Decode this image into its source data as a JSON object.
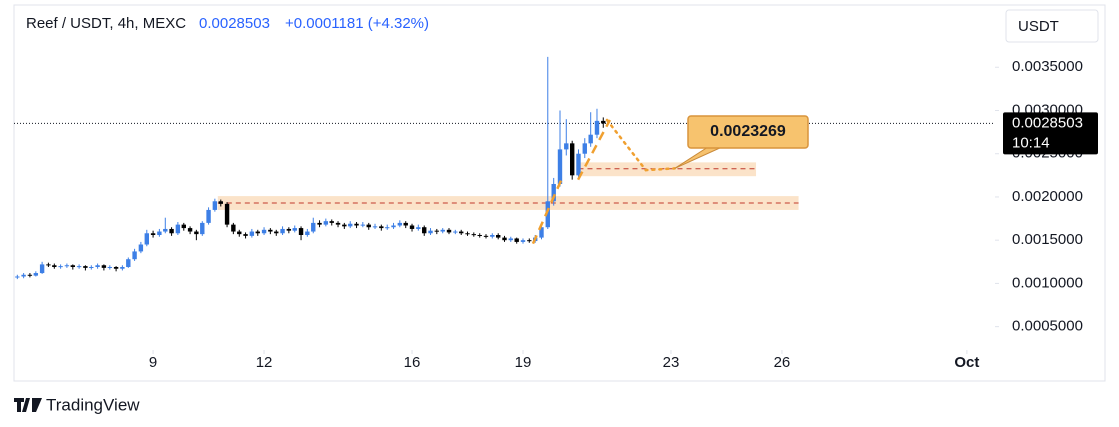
{
  "header": {
    "symbol": "Reef / USDT, 4h, MEXC",
    "change": "+0.0001181 (+4.32%)",
    "currency_button": "USDT",
    "countdown": "10:14",
    "brand": "TradingView"
  },
  "chart_data": {
    "type": "candlestick",
    "up_color": "#3d7fe6",
    "down_color": "#000000",
    "xlim": [
      5.24,
      31.76
    ],
    "xticks": [
      9,
      12,
      16,
      19,
      23,
      26,
      {
        "value": 31,
        "label": "Oct"
      }
    ],
    "ylim": [
      0.00023,
      0.00422
    ],
    "yticks": [
      {
        "value": 0.0005,
        "label": "0.0005000"
      },
      {
        "value": 0.001,
        "label": "0.0010000"
      },
      {
        "value": 0.0015,
        "label": "0.0015000"
      },
      {
        "value": 0.002,
        "label": "0.0020000"
      },
      {
        "value": 0.0025,
        "label": "0.0025000"
      },
      {
        "value": 0.003,
        "label": "0.0030000"
      },
      {
        "value": 0.0035,
        "label": "0.0035000"
      }
    ],
    "x": [
      5.33,
      5.5,
      5.67,
      5.83,
      6,
      6.17,
      6.33,
      6.5,
      6.67,
      6.83,
      7,
      7.17,
      7.33,
      7.5,
      7.67,
      7.83,
      8,
      8.17,
      8.33,
      8.5,
      8.67,
      8.83,
      9,
      9.17,
      9.33,
      9.5,
      9.67,
      9.83,
      10,
      10.17,
      10.33,
      10.5,
      10.67,
      10.83,
      11,
      11.17,
      11.33,
      11.5,
      11.67,
      11.83,
      12,
      12.17,
      12.33,
      12.5,
      12.67,
      12.83,
      13,
      13.17,
      13.33,
      13.5,
      13.67,
      13.83,
      14,
      14.17,
      14.33,
      14.5,
      14.67,
      14.83,
      15,
      15.17,
      15.33,
      15.5,
      15.67,
      15.83,
      16,
      16.17,
      16.33,
      16.5,
      16.67,
      16.83,
      17,
      17.17,
      17.33,
      17.5,
      17.67,
      17.83,
      18,
      18.17,
      18.33,
      18.5,
      18.67,
      18.83,
      19,
      19.17,
      19.33,
      19.5,
      19.67,
      19.83,
      20,
      20.17,
      20.33,
      20.5,
      20.67,
      20.83,
      21,
      21.17
    ],
    "open": [
      0.00107,
      0.00108,
      0.0011,
      0.00109,
      0.00112,
      0.00122,
      0.00121,
      0.00119,
      0.0012,
      0.00121,
      0.00119,
      0.0012,
      0.00118,
      0.00119,
      0.00121,
      0.00118,
      0.00119,
      0.00117,
      0.00119,
      0.00128,
      0.00137,
      0.00145,
      0.00158,
      0.00156,
      0.0016,
      0.00163,
      0.00158,
      0.00168,
      0.00164,
      0.0016,
      0.00157,
      0.0017,
      0.00185,
      0.00195,
      0.00192,
      0.00168,
      0.0016,
      0.00157,
      0.00155,
      0.0016,
      0.00158,
      0.00162,
      0.0016,
      0.00158,
      0.00163,
      0.00161,
      0.00164,
      0.00156,
      0.0016,
      0.0017,
      0.00168,
      0.00172,
      0.0017,
      0.00168,
      0.00166,
      0.00169,
      0.00167,
      0.00168,
      0.00165,
      0.00166,
      0.00164,
      0.00165,
      0.00167,
      0.0017,
      0.00167,
      0.00163,
      0.00165,
      0.00158,
      0.00161,
      0.0016,
      0.00162,
      0.00159,
      0.0016,
      0.00158,
      0.00157,
      0.00156,
      0.00155,
      0.00154,
      0.00156,
      0.00153,
      0.0015,
      0.00152,
      0.00148,
      0.0015,
      0.00149,
      0.00153,
      0.00165,
      0.00195,
      0.00215,
      0.00255,
      0.00262,
      0.00225,
      0.0025,
      0.00262,
      0.00272,
      0.00288
    ],
    "high": [
      0.0011,
      0.00112,
      0.00112,
      0.00114,
      0.00125,
      0.00124,
      0.00123,
      0.00122,
      0.00123,
      0.00122,
      0.00122,
      0.00121,
      0.00121,
      0.00123,
      0.00122,
      0.00121,
      0.0012,
      0.00121,
      0.0013,
      0.0014,
      0.00148,
      0.00162,
      0.00161,
      0.00163,
      0.00176,
      0.00165,
      0.00171,
      0.0017,
      0.00166,
      0.00162,
      0.00172,
      0.00188,
      0.00198,
      0.00197,
      0.00194,
      0.0017,
      0.00162,
      0.00159,
      0.00163,
      0.00162,
      0.00165,
      0.00164,
      0.00162,
      0.00166,
      0.00165,
      0.00167,
      0.00166,
      0.00163,
      0.00176,
      0.00173,
      0.00175,
      0.00174,
      0.00172,
      0.0017,
      0.00172,
      0.00171,
      0.00171,
      0.0017,
      0.00169,
      0.00168,
      0.00168,
      0.0017,
      0.00173,
      0.00172,
      0.00169,
      0.00168,
      0.00167,
      0.00164,
      0.00163,
      0.00164,
      0.00164,
      0.00162,
      0.00162,
      0.0016,
      0.00159,
      0.00158,
      0.00157,
      0.00158,
      0.00158,
      0.00155,
      0.00154,
      0.00153,
      0.00152,
      0.00152,
      0.00156,
      0.00168,
      0.00362,
      0.00222,
      0.003,
      0.0029,
      0.00265,
      0.00255,
      0.00268,
      0.00298,
      0.00302,
      0.00292
    ],
    "low": [
      0.00105,
      0.00106,
      0.00107,
      0.00108,
      0.00111,
      0.00119,
      0.00117,
      0.00117,
      0.00118,
      0.00116,
      0.00117,
      0.00115,
      0.00116,
      0.00117,
      0.00115,
      0.00116,
      0.00114,
      0.00115,
      0.00118,
      0.00126,
      0.00135,
      0.00143,
      0.00153,
      0.00154,
      0.00158,
      0.00155,
      0.00156,
      0.00161,
      0.00157,
      0.0015,
      0.00155,
      0.00168,
      0.00183,
      0.00189,
      0.00165,
      0.00157,
      0.00154,
      0.00152,
      0.00153,
      0.00155,
      0.00156,
      0.00157,
      0.00155,
      0.00156,
      0.00158,
      0.00159,
      0.0015,
      0.00154,
      0.00158,
      0.00165,
      0.00166,
      0.00167,
      0.00165,
      0.00163,
      0.00164,
      0.00164,
      0.00165,
      0.00162,
      0.00163,
      0.00161,
      0.00162,
      0.00163,
      0.00165,
      0.00164,
      0.0016,
      0.00161,
      0.00155,
      0.00156,
      0.00157,
      0.00158,
      0.00157,
      0.00157,
      0.00156,
      0.00155,
      0.00154,
      0.00153,
      0.00152,
      0.00152,
      0.00151,
      0.00148,
      0.00148,
      0.00146,
      0.00146,
      0.00147,
      0.00147,
      0.00151,
      0.00163,
      0.0019,
      0.00212,
      0.00248,
      0.0022,
      0.00222,
      0.00245,
      0.00258,
      0.00268,
      0.0028
    ],
    "close": [
      0.00108,
      0.0011,
      0.00109,
      0.00112,
      0.00122,
      0.00121,
      0.00119,
      0.0012,
      0.00121,
      0.00119,
      0.0012,
      0.00118,
      0.00119,
      0.00121,
      0.00118,
      0.00119,
      0.00117,
      0.00119,
      0.00128,
      0.00137,
      0.00145,
      0.00158,
      0.00156,
      0.0016,
      0.00163,
      0.00158,
      0.00168,
      0.00164,
      0.0016,
      0.00157,
      0.0017,
      0.00185,
      0.00195,
      0.00192,
      0.00168,
      0.0016,
      0.00157,
      0.00155,
      0.0016,
      0.00158,
      0.00162,
      0.0016,
      0.00158,
      0.00163,
      0.00161,
      0.00164,
      0.00156,
      0.0016,
      0.0017,
      0.00168,
      0.00172,
      0.0017,
      0.00168,
      0.00166,
      0.00169,
      0.00167,
      0.00168,
      0.00165,
      0.00166,
      0.00164,
      0.00165,
      0.00167,
      0.0017,
      0.00167,
      0.00163,
      0.00165,
      0.00158,
      0.00161,
      0.0016,
      0.00162,
      0.00159,
      0.0016,
      0.00158,
      0.00157,
      0.00156,
      0.00155,
      0.00154,
      0.00156,
      0.00153,
      0.0015,
      0.00152,
      0.00148,
      0.0015,
      0.00149,
      0.00153,
      0.00165,
      0.00195,
      0.00215,
      0.00255,
      0.00262,
      0.00225,
      0.0025,
      0.00262,
      0.00272,
      0.00288,
      0.0028503
    ],
    "zone_color": "#fbe3c9",
    "zones": [
      {
        "x0": 10.75,
        "x1": 26.45,
        "top": 0.00201,
        "bottom": 0.00185,
        "level": 0.00193
      },
      {
        "x0": 20.5,
        "x1": 25.3,
        "top": 0.0024,
        "bottom": 0.00224,
        "level": 0.0023269
      }
    ],
    "trend_color": "#f0a030",
    "trendlines": [
      {
        "x": [
          19.27,
          20.08
        ],
        "y": [
          0.00146,
          0.00224
        ]
      },
      {
        "x": [
          20.49,
          21.35
        ],
        "y": [
          0.0022,
          0.00289
        ]
      }
    ],
    "projection": {
      "x": [
        21.27,
        22.32,
        23.1
      ],
      "y": [
        0.00289,
        0.00231,
        0.00233
      ]
    }
  }
}
